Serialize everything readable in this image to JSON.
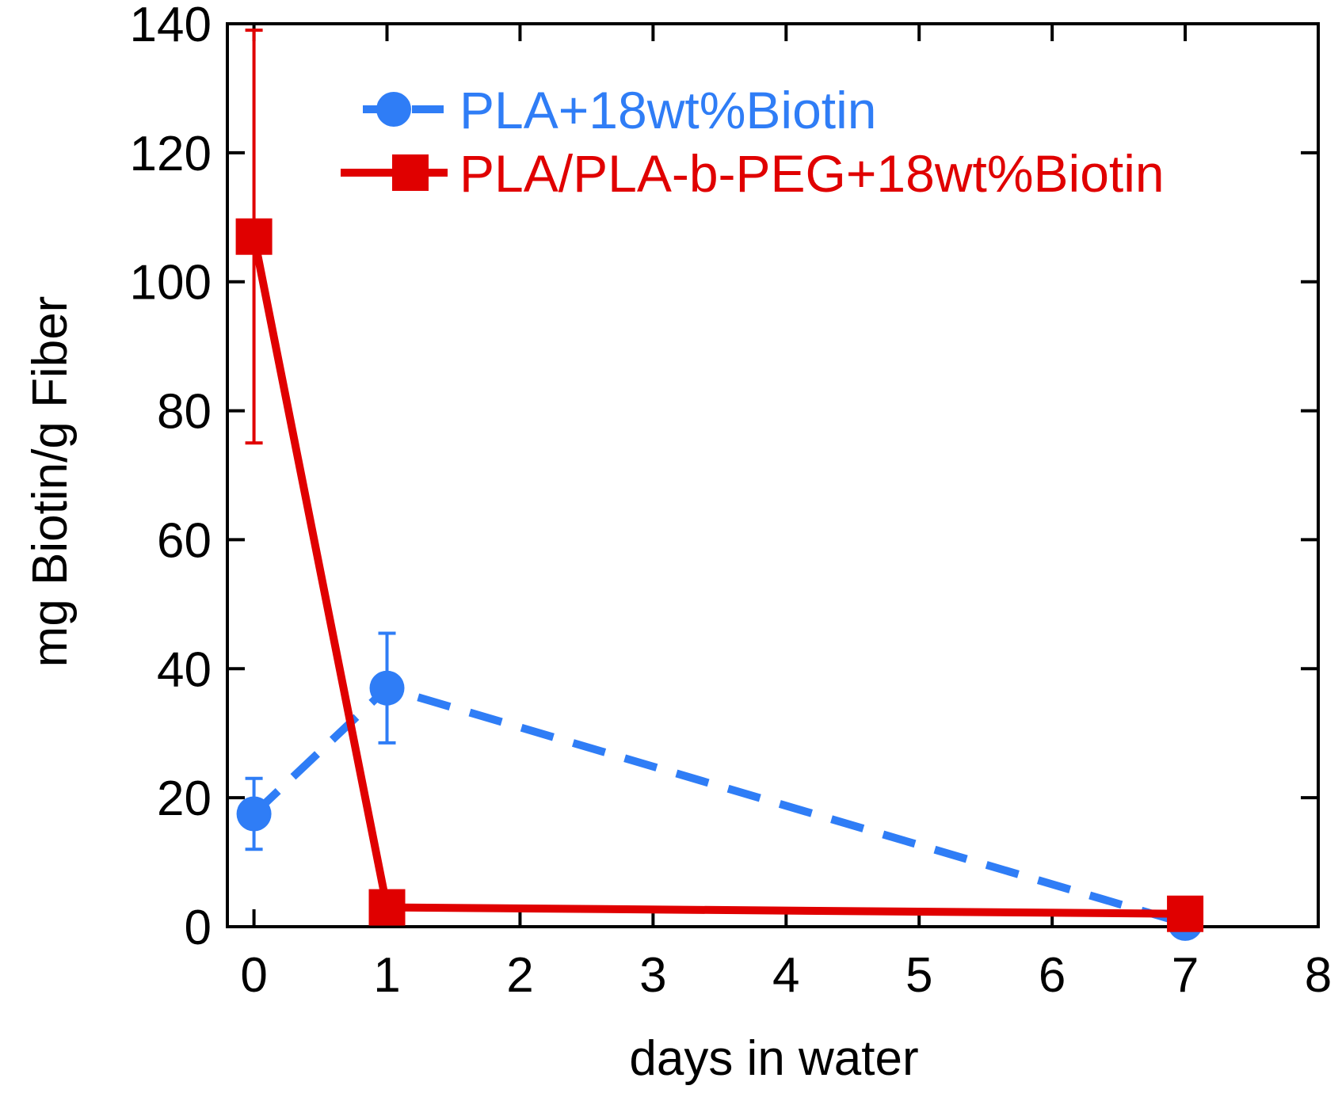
{
  "colors": {
    "series1": "#2f7df6",
    "series2": "#e00000",
    "axis": "#000000"
  },
  "chart_data": {
    "type": "line",
    "title": "",
    "xlabel": "days in water",
    "ylabel": "mg Biotin/g Fiber",
    "xlim": [
      -0.2,
      8
    ],
    "ylim": [
      0,
      140
    ],
    "xticks": [
      0,
      1,
      2,
      3,
      4,
      5,
      6,
      7,
      8
    ],
    "yticks": [
      0,
      20,
      40,
      60,
      80,
      100,
      120,
      140
    ],
    "grid": false,
    "legend_position": "top-right",
    "series": [
      {
        "name": "PLA+18wt%Biotin",
        "color": "#2f7df6",
        "line_style": "dashed",
        "marker": "circle",
        "x": [
          0,
          1,
          7
        ],
        "y": [
          17.5,
          37,
          0.5
        ],
        "yerr": [
          5.5,
          8.5,
          0
        ]
      },
      {
        "name": "PLA/PLA-b-PEG+18wt%Biotin",
        "color": "#e00000",
        "line_style": "solid",
        "marker": "square",
        "x": [
          0,
          1,
          7
        ],
        "y": [
          107,
          3,
          2
        ],
        "yerr": [
          32,
          0,
          0
        ]
      }
    ]
  }
}
